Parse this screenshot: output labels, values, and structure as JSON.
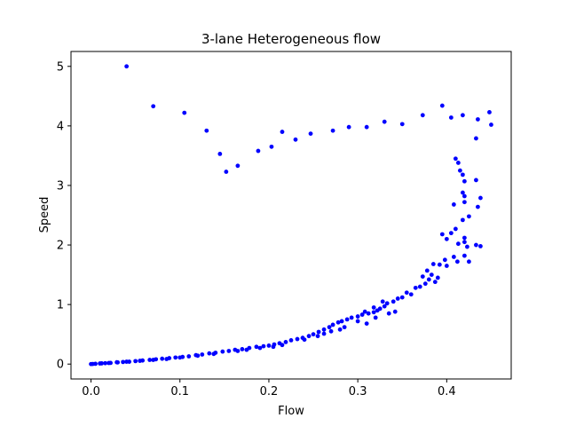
{
  "chart_data": {
    "type": "scatter",
    "title": "3-lane Heterogeneous flow",
    "xlabel": "Flow",
    "ylabel": "Speed",
    "xlim": [
      -0.0225,
      0.4725
    ],
    "ylim": [
      -0.25,
      5.25
    ],
    "xticks": [
      0.0,
      0.1,
      0.2,
      0.3,
      0.4
    ],
    "xtick_labels": [
      "0.0",
      "0.1",
      "0.2",
      "0.3",
      "0.4"
    ],
    "yticks": [
      0,
      1,
      2,
      3,
      4,
      5
    ],
    "ytick_labels": [
      "0",
      "1",
      "2",
      "3",
      "4",
      "5"
    ],
    "grid": false,
    "marker_color": "#0000ff",
    "series": [
      {
        "points": [
          [
            0.04,
            5.0
          ],
          [
            0.07,
            4.33
          ],
          [
            0.105,
            4.22
          ],
          [
            0.13,
            3.92
          ],
          [
            0.145,
            3.53
          ],
          [
            0.152,
            3.23
          ],
          [
            0.165,
            3.33
          ],
          [
            0.188,
            3.58
          ],
          [
            0.203,
            3.65
          ],
          [
            0.215,
            3.9
          ],
          [
            0.23,
            3.77
          ],
          [
            0.247,
            3.87
          ],
          [
            0.272,
            3.92
          ],
          [
            0.29,
            3.98
          ],
          [
            0.31,
            3.98
          ],
          [
            0.33,
            4.07
          ],
          [
            0.35,
            4.03
          ],
          [
            0.373,
            4.18
          ],
          [
            0.395,
            4.34
          ],
          [
            0.405,
            4.14
          ],
          [
            0.418,
            4.18
          ],
          [
            0.435,
            4.11
          ],
          [
            0.448,
            4.23
          ],
          [
            0.45,
            4.02
          ],
          [
            0.433,
            3.79
          ],
          [
            0.41,
            3.45
          ],
          [
            0.413,
            3.38
          ],
          [
            0.415,
            3.25
          ],
          [
            0.418,
            3.18
          ],
          [
            0.42,
            3.07
          ],
          [
            0.433,
            3.09
          ],
          [
            0.418,
            2.88
          ],
          [
            0.42,
            2.82
          ],
          [
            0.42,
            2.72
          ],
          [
            0.408,
            2.68
          ],
          [
            0.435,
            2.64
          ],
          [
            0.438,
            2.79
          ],
          [
            0.425,
            2.48
          ],
          [
            0.418,
            2.42
          ],
          [
            0.42,
            2.12
          ],
          [
            0.41,
            2.27
          ],
          [
            0.405,
            2.2
          ],
          [
            0.395,
            2.18
          ],
          [
            0.4,
            2.1
          ],
          [
            0.413,
            2.02
          ],
          [
            0.42,
            2.05
          ],
          [
            0.423,
            1.97
          ],
          [
            0.433,
            2.0
          ],
          [
            0.438,
            1.98
          ],
          [
            0.42,
            1.82
          ],
          [
            0.412,
            1.72
          ],
          [
            0.398,
            1.75
          ],
          [
            0.4,
            1.65
          ],
          [
            0.425,
            1.72
          ],
          [
            0.408,
            1.8
          ],
          [
            0.392,
            1.67
          ],
          [
            0.385,
            1.68
          ],
          [
            0.378,
            1.57
          ],
          [
            0.373,
            1.47
          ],
          [
            0.383,
            1.5
          ],
          [
            0.39,
            1.45
          ],
          [
            0.38,
            1.42
          ],
          [
            0.376,
            1.35
          ],
          [
            0.387,
            1.38
          ],
          [
            0.37,
            1.3
          ],
          [
            0.365,
            1.28
          ],
          [
            0.355,
            1.2
          ],
          [
            0.36,
            1.17
          ],
          [
            0.35,
            1.12
          ],
          [
            0.345,
            1.1
          ],
          [
            0.34,
            1.05
          ],
          [
            0.333,
            1.02
          ],
          [
            0.33,
            0.97
          ],
          [
            0.325,
            0.93
          ],
          [
            0.322,
            0.9
          ],
          [
            0.318,
            0.87
          ],
          [
            0.312,
            0.85
          ],
          [
            0.305,
            0.83
          ],
          [
            0.3,
            0.8
          ],
          [
            0.293,
            0.78
          ],
          [
            0.288,
            0.75
          ],
          [
            0.282,
            0.72
          ],
          [
            0.278,
            0.7
          ],
          [
            0.272,
            0.66
          ],
          [
            0.268,
            0.62
          ],
          [
            0.262,
            0.58
          ],
          [
            0.256,
            0.54
          ],
          [
            0.25,
            0.5
          ],
          [
            0.245,
            0.47
          ],
          [
            0.238,
            0.44
          ],
          [
            0.232,
            0.42
          ],
          [
            0.225,
            0.4
          ],
          [
            0.219,
            0.37
          ],
          [
            0.212,
            0.35
          ],
          [
            0.206,
            0.33
          ],
          [
            0.2,
            0.31
          ],
          [
            0.194,
            0.3
          ],
          [
            0.186,
            0.29
          ],
          [
            0.178,
            0.27
          ],
          [
            0.17,
            0.25
          ],
          [
            0.162,
            0.24
          ],
          [
            0.155,
            0.22
          ],
          [
            0.148,
            0.21
          ],
          [
            0.14,
            0.19
          ],
          [
            0.133,
            0.18
          ],
          [
            0.125,
            0.16
          ],
          [
            0.118,
            0.15
          ],
          [
            0.11,
            0.13
          ],
          [
            0.103,
            0.12
          ],
          [
            0.095,
            0.11
          ],
          [
            0.088,
            0.1
          ],
          [
            0.08,
            0.09
          ],
          [
            0.073,
            0.08
          ],
          [
            0.066,
            0.07
          ],
          [
            0.058,
            0.06
          ],
          [
            0.05,
            0.05
          ],
          [
            0.043,
            0.04
          ],
          [
            0.036,
            0.035
          ],
          [
            0.029,
            0.03
          ],
          [
            0.022,
            0.02
          ],
          [
            0.016,
            0.015
          ],
          [
            0.01,
            0.01
          ],
          [
            0.005,
            0.005
          ],
          [
            0.002,
            0.002
          ],
          [
            0.0,
            0.0
          ],
          [
            0.3,
            0.72
          ],
          [
            0.31,
            0.68
          ],
          [
            0.32,
            0.78
          ],
          [
            0.318,
            0.95
          ],
          [
            0.328,
            1.05
          ],
          [
            0.335,
            0.85
          ],
          [
            0.342,
            0.88
          ],
          [
            0.308,
            0.88
          ],
          [
            0.28,
            0.58
          ],
          [
            0.285,
            0.62
          ],
          [
            0.27,
            0.55
          ],
          [
            0.262,
            0.51
          ],
          [
            0.255,
            0.47
          ],
          [
            0.24,
            0.41
          ],
          [
            0.215,
            0.32
          ],
          [
            0.205,
            0.29
          ],
          [
            0.19,
            0.27
          ],
          [
            0.175,
            0.24
          ],
          [
            0.165,
            0.22
          ],
          [
            0.138,
            0.17
          ],
          [
            0.12,
            0.14
          ],
          [
            0.1,
            0.11
          ],
          [
            0.085,
            0.085
          ],
          [
            0.07,
            0.07
          ],
          [
            0.055,
            0.055
          ],
          [
            0.04,
            0.04
          ],
          [
            0.03,
            0.028
          ],
          [
            0.02,
            0.018
          ],
          [
            0.012,
            0.012
          ]
        ]
      }
    ]
  }
}
